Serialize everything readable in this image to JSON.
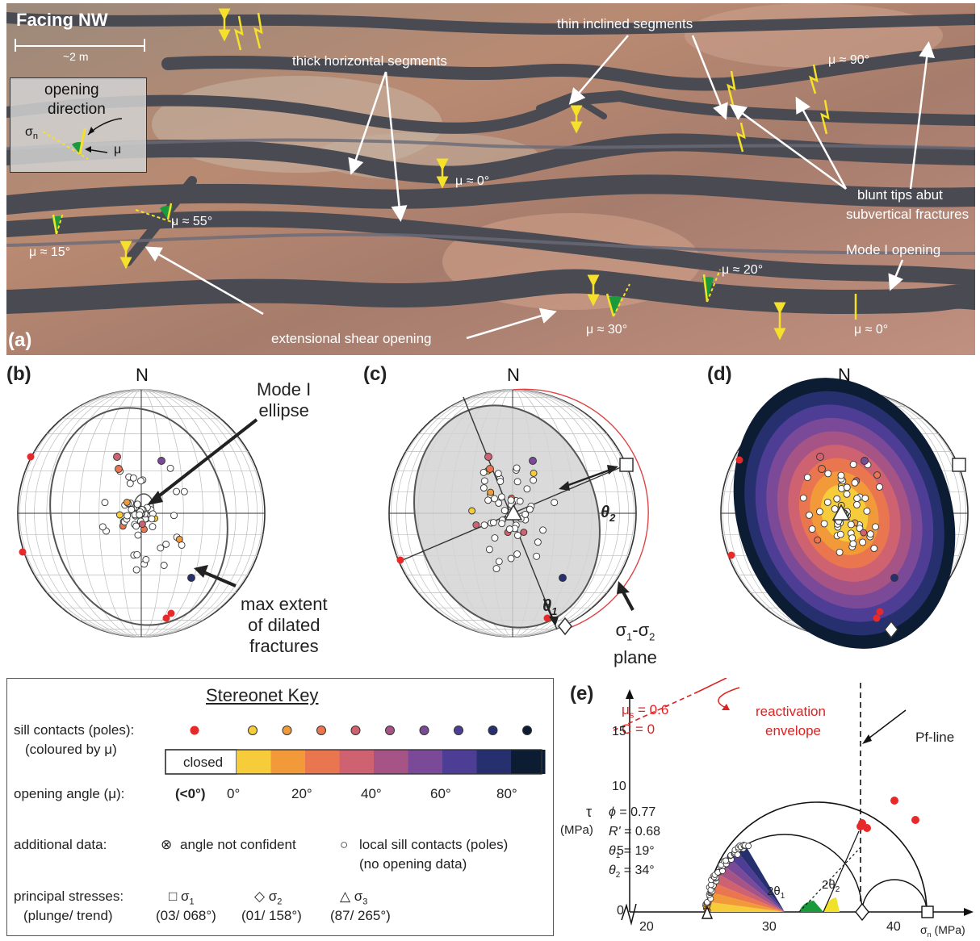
{
  "panel_a": {
    "letter": "(a)",
    "facing": "Facing NW",
    "scale": "~2 m",
    "inset_title1": "opening",
    "inset_title2": "direction",
    "inset_sigma": "σ",
    "inset_sigma_sub": "n",
    "inset_mu": "μ",
    "labels": {
      "thin_inclined": "thin inclined segments",
      "thick_horizontal": "thick horizontal segments",
      "mu90": "μ ≈ 90°",
      "mu0_center": "μ ≈ 0°",
      "mu55": "μ ≈ 55°",
      "mu15": "μ ≈ 15°",
      "blunt1": "blunt tips abut",
      "blunt2": "subvertical fractures",
      "mode1": "Mode I opening",
      "mu20": "μ ≈ 20°",
      "ext_shear": "extensional shear opening",
      "mu30": "μ ≈ 30°",
      "mu0_right": "μ ≈ 0°"
    }
  },
  "panel_b": {
    "letter": "(b)",
    "north": "N",
    "mode1_line1": "Mode I",
    "mode1_line2": "ellipse",
    "max1": "max extent",
    "max2": "of dilated",
    "max3": "fractures"
  },
  "panel_c": {
    "letter": "(c)",
    "north": "N",
    "theta2": "θ",
    "theta2_sub": "2",
    "theta1": "θ",
    "theta1_sub": "1",
    "plane1": "σ",
    "plane_sub1": "1",
    "plane_dash": "-σ",
    "plane_sub2": "2",
    "plane2": "plane"
  },
  "panel_d": {
    "letter": "(d)",
    "north": "N"
  },
  "key": {
    "title": "Stereonet Key",
    "row1a": "sill contacts (poles):",
    "row1b": "(coloured by μ)",
    "closed": "closed",
    "row2": "opening angle (μ):",
    "neg": "(<0°)",
    "ticks": [
      "0°",
      "20°",
      "40°",
      "60°",
      "80°"
    ],
    "row3": "additional data:",
    "not_confident": "angle not confident",
    "local1": "local sill contacts (poles)",
    "local2": "(no opening data)",
    "row4a": "principal stresses:",
    "row4b": "(plunge/ trend)",
    "s1": "σ",
    "s1sub": "1",
    "s1val": "(03/ 068°)",
    "s2": "σ",
    "s2sub": "2",
    "s2val": "(01/ 158°)",
    "s3": "σ",
    "s3sub": "3",
    "s3val": "(87/ 265°)",
    "colors": [
      "#f7cc3a",
      "#f29a3a",
      "#ea7650",
      "#cf6270",
      "#a65486",
      "#7a4a98",
      "#4d3d95",
      "#27306e",
      "#0c1c33"
    ]
  },
  "panel_e": {
    "letter": "(e)",
    "mu_s": "μ",
    "mu_s_sub": "s",
    "mu_s_val": " = 0.6",
    "c": "C = 0",
    "reac1": "reactivation",
    "reac2": "envelope",
    "pf": "Pf-line",
    "tau": "τ",
    "mpa": "(MPa)",
    "phi": "= 0.77",
    "rprime": "= 0.68",
    "th1": "= 19°",
    "th2": "= 34°",
    "two_th1": "2θ",
    "two_th1_sub": "1",
    "two_th2": "2θ",
    "two_th2_sub": "2",
    "xlabel": "σ",
    "xlabel_sub": "n",
    "xunit": " (MPa)",
    "yticks": [
      "0",
      "5",
      "10",
      "15"
    ],
    "xticks": [
      "20",
      "30",
      "40"
    ]
  }
}
